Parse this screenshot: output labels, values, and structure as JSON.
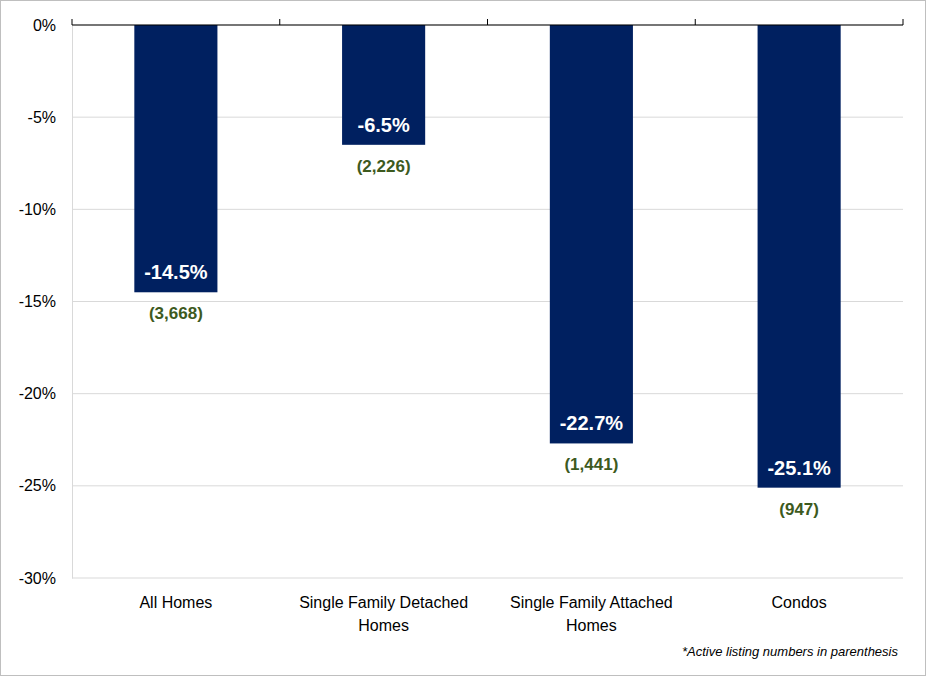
{
  "chart_data": {
    "type": "bar",
    "categories": [
      "All Homes",
      "Single Family Detached Homes",
      "Single Family Attached Homes",
      "Condos"
    ],
    "values": [
      -14.5,
      -6.5,
      -22.7,
      -25.1
    ],
    "value_labels": [
      "-14.5%",
      "-6.5%",
      "-22.7%",
      "-25.1%"
    ],
    "active_listings": [
      3668,
      2226,
      1441,
      947
    ],
    "active_listing_labels": [
      "(3,668)",
      "(2,226)",
      "(1,441)",
      "(947)"
    ],
    "color": "#002060",
    "ylim": [
      -30,
      0
    ],
    "yticks": [
      {
        "value": 0,
        "label": "0%"
      },
      {
        "value": -5,
        "label": "-5%"
      },
      {
        "value": -10,
        "label": "-10%"
      },
      {
        "value": -15,
        "label": "-15%"
      },
      {
        "value": -20,
        "label": "-20%"
      },
      {
        "value": -25,
        "label": "-25%"
      },
      {
        "value": -30,
        "label": "-30%"
      }
    ],
    "grid": true,
    "data_labels": true,
    "annotation": "*Active listing numbers in parenthesis"
  }
}
